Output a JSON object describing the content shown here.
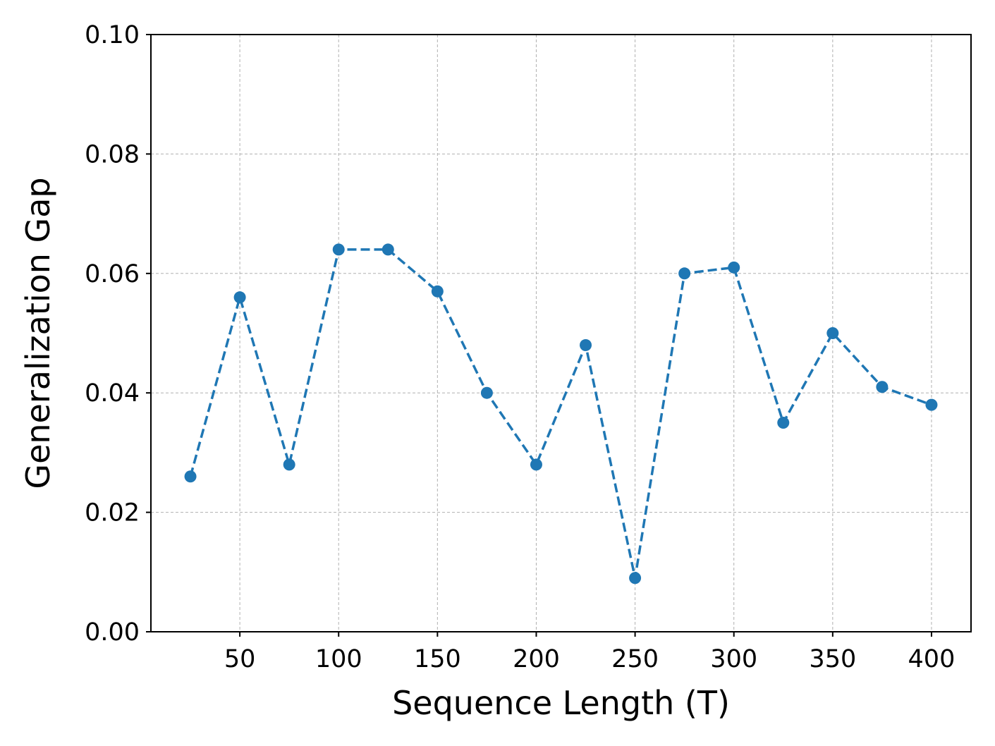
{
  "chart_data": {
    "type": "line",
    "xlabel": "Sequence Length (T)",
    "ylabel": "Generalization Gap",
    "xlim": [
      5,
      420
    ],
    "ylim": [
      0,
      0.1
    ],
    "xticks": [
      "50",
      "100",
      "150",
      "200",
      "250",
      "300",
      "350",
      "400"
    ],
    "xtick_values": [
      50,
      100,
      150,
      200,
      250,
      300,
      350,
      400
    ],
    "yticks": [
      "0.00",
      "0.02",
      "0.04",
      "0.06",
      "0.08",
      "0.10"
    ],
    "ytick_values": [
      0,
      0.02,
      0.04,
      0.06,
      0.08,
      0.1
    ],
    "grid": true,
    "series": [
      {
        "line_style": "dashed",
        "marker": "circle",
        "color": "#1f77b4",
        "x": [
          25,
          50,
          75,
          100,
          125,
          150,
          175,
          200,
          225,
          250,
          275,
          300,
          325,
          350,
          375,
          400
        ],
        "y": [
          0.026,
          0.056,
          0.028,
          0.064,
          0.064,
          0.057,
          0.04,
          0.028,
          0.048,
          0.009,
          0.06,
          0.061,
          0.035,
          0.05,
          0.041,
          0.038
        ]
      }
    ]
  }
}
